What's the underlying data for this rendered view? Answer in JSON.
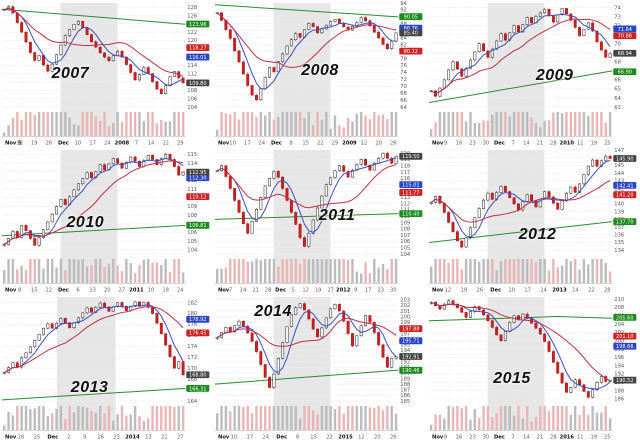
{
  "page": {
    "description": "Grid of nine seasonal stock candlestick charts, November through January, for years 2007-2015"
  },
  "colors": {
    "candle_up_fill": "#ffffff",
    "candle_up_stroke": "#222222",
    "candle_down_fill": "#cc2020",
    "candle_down_stroke": "#a01616",
    "ma_short": "#3a4fc4",
    "ma_long": "#c03048",
    "ma_200": "#2e8b2e",
    "vol_up": "#bcbcbc",
    "vol_down": "#e9b6b6",
    "band": "#d9d9d9",
    "grid": "#ececec",
    "axis_text": "#555555",
    "tag_green": "#1d8a1d",
    "tag_red": "#cc2222",
    "tag_blue": "#2a46c8",
    "tag_last": "#444444"
  },
  "chart_data": [
    {
      "type": "candlestick",
      "year": "2007",
      "year_pos": [
        0.33,
        0.5
      ],
      "ylim": [
        104,
        129
      ],
      "ystep": 2,
      "band": [
        0.32,
        0.63
      ],
      "x_labels": [
        "Nov 5",
        "12",
        "19",
        "26",
        "Dec",
        "10",
        "17",
        "24",
        "2008",
        "7",
        "14",
        "22",
        "29"
      ],
      "closes": [
        127.4,
        128.1,
        126.6,
        124.3,
        122.0,
        119.6,
        117.1,
        115.2,
        116.4,
        114.1,
        112.6,
        114.3,
        116.6,
        118.9,
        121.2,
        122.6,
        123.9,
        124.6,
        123.1,
        121.4,
        119.7,
        118.4,
        117.0,
        116.0,
        115.1,
        116.3,
        117.4,
        116.0,
        114.2,
        112.3,
        110.5,
        111.8,
        113.5,
        112.0,
        110.1,
        108.3,
        107.2,
        109.1,
        111.3,
        112.5,
        111.0,
        109.8
      ],
      "green_line": [
        [
          0,
          127.5
        ],
        [
          1,
          123.9
        ]
      ],
      "tags": [
        {
          "label": "123.96",
          "value": 123.96,
          "color": "tag_green"
        },
        {
          "label": "118.27",
          "value": 118.27,
          "color": "tag_red"
        },
        {
          "label": "116.01",
          "value": 116.01,
          "color": "tag_blue"
        },
        {
          "label": "109.80",
          "value": 109.8,
          "color": "tag_last"
        }
      ]
    },
    {
      "type": "candlestick",
      "year": "2008",
      "year_pos": [
        0.5,
        0.48
      ],
      "ylim": [
        64,
        94
      ],
      "ystep": 2,
      "band": [
        0.32,
        0.63
      ],
      "x_labels": [
        "Nov",
        "10",
        "17",
        "24",
        "Dec",
        "8",
        "15",
        "22",
        "29",
        "2009",
        "12",
        "20",
        "26"
      ],
      "closes": [
        91.2,
        89.0,
        86.3,
        83.8,
        80.2,
        77.0,
        73.5,
        70.2,
        67.4,
        66.1,
        69.3,
        72.6,
        75.4,
        74.2,
        77.1,
        79.3,
        81.6,
        83.4,
        85.2,
        84.1,
        86.3,
        88.1,
        87.2,
        85.4,
        86.5,
        87.6,
        88.7,
        89.3,
        88.2,
        87.1,
        86.2,
        87.3,
        88.4,
        89.8,
        88.9,
        87.4,
        85.6,
        83.9,
        82.1,
        80.8,
        83.0,
        85.4
      ],
      "green_line": [
        [
          0,
          93.5
        ],
        [
          1,
          90.0
        ]
      ],
      "tags": [
        {
          "label": "90.05",
          "value": 90.05,
          "color": "tag_green"
        },
        {
          "label": "86.76",
          "value": 86.76,
          "color": "tag_blue"
        },
        {
          "label": "80.12",
          "value": 80.12,
          "color": "tag_red"
        },
        {
          "label": "85.40",
          "value": 85.4,
          "color": "tag_last"
        }
      ]
    },
    {
      "type": "candlestick",
      "year": "2009",
      "year_pos": [
        0.6,
        0.52
      ],
      "ylim": [
        63,
        74.5
      ],
      "ystep": 1,
      "band": [
        0.32,
        0.63
      ],
      "x_labels": [
        "Nov",
        "9",
        "16",
        "23",
        "30",
        "Dec",
        "7",
        "14",
        "21",
        "28",
        "2010",
        "11",
        "19",
        "25"
      ],
      "closes": [
        64.8,
        64.2,
        65.1,
        66.0,
        67.1,
        68.0,
        67.2,
        66.4,
        67.3,
        68.2,
        69.1,
        70.0,
        69.2,
        68.5,
        69.4,
        70.3,
        71.1,
        70.4,
        71.2,
        72.0,
        71.3,
        72.1,
        72.9,
        72.3,
        73.0,
        73.4,
        73.8,
        73.1,
        72.4,
        73.2,
        73.9,
        73.3,
        72.6,
        71.8,
        70.9,
        71.6,
        72.3,
        71.4,
        70.2,
        69.3,
        68.5,
        68.9
      ],
      "green_line": [
        [
          0,
          63.5
        ],
        [
          1,
          67.0
        ]
      ],
      "tags": [
        {
          "label": "66.90",
          "value": 66.9,
          "color": "tag_green"
        },
        {
          "label": "70.88",
          "value": 70.88,
          "color": "tag_red"
        },
        {
          "label": "71.64",
          "value": 71.64,
          "color": "tag_blue"
        },
        {
          "label": "68.94",
          "value": 68.94,
          "color": "tag_last"
        }
      ]
    },
    {
      "type": "candlestick",
      "year": "2010",
      "year_pos": [
        0.4,
        0.52
      ],
      "ylim": [
        103.5,
        115.5
      ],
      "ystep": 1,
      "band": [
        0.32,
        0.63
      ],
      "x_labels": [
        "Nov",
        "8",
        "15",
        "22",
        "Dec",
        "6",
        "13",
        "20",
        "27",
        "2011",
        "10",
        "18",
        "24"
      ],
      "closes": [
        104.6,
        105.3,
        106.1,
        105.4,
        106.8,
        106.2,
        105.3,
        104.5,
        105.4,
        106.3,
        107.2,
        108.1,
        109.0,
        109.8,
        109.2,
        110.1,
        110.9,
        111.6,
        112.2,
        112.9,
        112.3,
        113.0,
        113.8,
        113.2,
        113.9,
        114.5,
        114.0,
        113.4,
        114.1,
        114.7,
        114.2,
        113.6,
        114.3,
        114.9,
        114.4,
        113.8,
        114.5,
        115.0,
        114.4,
        113.6,
        112.6,
        112.95
      ],
      "green_line": [
        [
          0,
          105.6
        ],
        [
          1,
          106.8
        ]
      ],
      "tags": [
        {
          "label": "106.81",
          "value": 106.81,
          "color": "tag_green"
        },
        {
          "label": "110.12",
          "value": 110.12,
          "color": "tag_red"
        },
        {
          "label": "112.30",
          "value": 112.3,
          "color": "tag_blue"
        },
        {
          "label": "112.95",
          "value": 112.95,
          "color": "tag_last"
        }
      ]
    },
    {
      "type": "candlestick",
      "year": "2011",
      "year_pos": [
        0.58,
        0.47
      ],
      "ylim": [
        104,
        120.5
      ],
      "ystep": 1,
      "band": [
        0.32,
        0.63
      ],
      "x_labels": [
        "Nov",
        "7",
        "14",
        "21",
        "28",
        "Dec",
        "5",
        "12",
        "19",
        "27",
        "2012",
        "9",
        "17",
        "23",
        "30"
      ],
      "closes": [
        117.2,
        118.0,
        116.3,
        114.4,
        112.5,
        110.6,
        108.8,
        107.3,
        109.2,
        111.1,
        113.0,
        114.8,
        116.0,
        117.1,
        116.2,
        114.4,
        112.5,
        110.6,
        108.7,
        106.6,
        105.2,
        107.3,
        109.4,
        111.3,
        113.2,
        115.0,
        116.1,
        117.2,
        118.0,
        117.1,
        116.2,
        117.3,
        118.2,
        119.0,
        118.1,
        117.3,
        118.4,
        119.2,
        120.0,
        119.2,
        118.4,
        119.5
      ],
      "green_line": [
        [
          0,
          109.5
        ],
        [
          1,
          110.4
        ]
      ],
      "tags": [
        {
          "label": "110.40",
          "value": 110.4,
          "color": "tag_green"
        },
        {
          "label": "113.77",
          "value": 113.77,
          "color": "tag_red"
        },
        {
          "label": "115.01",
          "value": 115.01,
          "color": "tag_blue"
        },
        {
          "label": "119.50",
          "value": 119.5,
          "color": "tag_last"
        }
      ]
    },
    {
      "type": "candlestick",
      "year": "2012",
      "year_pos": [
        0.52,
        0.6
      ],
      "ylim": [
        133.5,
        147
      ],
      "ystep": 1,
      "band": [
        0.32,
        0.63
      ],
      "x_labels": [
        "Nov",
        "12",
        "19",
        "26",
        "Dec",
        "10",
        "17",
        "24",
        "2013",
        "14",
        "22",
        "28"
      ],
      "closes": [
        140.2,
        141.0,
        140.1,
        138.9,
        137.6,
        136.4,
        135.2,
        134.4,
        135.6,
        136.9,
        138.2,
        139.4,
        140.5,
        141.4,
        140.6,
        141.5,
        142.3,
        141.6,
        140.8,
        140.0,
        139.2,
        140.3,
        141.2,
        140.4,
        139.6,
        140.6,
        141.6,
        140.9,
        140.1,
        139.3,
        140.4,
        141.4,
        142.2,
        141.5,
        142.6,
        143.8,
        144.9,
        145.7,
        144.9,
        145.6,
        146.2,
        145.9
      ],
      "green_line": [
        [
          0,
          135.0
        ],
        [
          1,
          137.7
        ]
      ],
      "tags": [
        {
          "label": "137.70",
          "value": 137.7,
          "color": "tag_green"
        },
        {
          "label": "141.20",
          "value": 141.2,
          "color": "tag_red"
        },
        {
          "label": "142.41",
          "value": 142.41,
          "color": "tag_blue"
        },
        {
          "label": "145.90",
          "value": 145.9,
          "color": "tag_last"
        }
      ]
    },
    {
      "type": "candlestick",
      "year": "2013",
      "year_pos": [
        0.42,
        0.64
      ],
      "ylim": [
        164,
        183
      ],
      "ystep": 2,
      "band": [
        0.3,
        0.62
      ],
      "x_labels": [
        "Nov",
        "18",
        "25",
        "Dec",
        "2",
        "9",
        "16",
        "23",
        "2014",
        "13",
        "21",
        "27"
      ],
      "closes": [
        169.2,
        170.1,
        171.0,
        170.2,
        171.9,
        172.8,
        173.9,
        175.1,
        176.2,
        177.3,
        178.1,
        177.3,
        178.2,
        179.1,
        178.3,
        177.4,
        178.3,
        179.2,
        180.1,
        181.0,
        180.2,
        181.1,
        181.9,
        181.2,
        180.4,
        181.2,
        182.0,
        181.3,
        180.5,
        181.3,
        182.1,
        181.4,
        182.0,
        181.1,
        180.0,
        178.2,
        176.3,
        174.2,
        172.1,
        170.0,
        171.2,
        168.8
      ],
      "green_line": [
        [
          0,
          164.2
        ],
        [
          1,
          166.3
        ]
      ],
      "tags": [
        {
          "label": "166.31",
          "value": 166.31,
          "color": "tag_green"
        },
        {
          "label": "176.45",
          "value": 176.45,
          "color": "tag_red"
        },
        {
          "label": "178.92",
          "value": 178.92,
          "color": "tag_blue"
        },
        {
          "label": "168.80",
          "value": 168.8,
          "color": "tag_last"
        }
      ]
    },
    {
      "type": "candlestick",
      "year": "2014",
      "year_pos": [
        0.28,
        0.12
      ],
      "ylim": [
        185,
        203.5
      ],
      "ystep": 1,
      "band": [
        0.32,
        0.63
      ],
      "x_labels": [
        "Nov",
        "10",
        "17",
        "24",
        "Dec",
        "8",
        "15",
        "22",
        "2015",
        "12",
        "20",
        "26"
      ],
      "closes": [
        196.3,
        197.2,
        198.1,
        197.3,
        198.4,
        199.2,
        198.3,
        197.1,
        195.6,
        193.8,
        191.5,
        189.2,
        187.4,
        189.8,
        192.6,
        195.4,
        198.2,
        200.4,
        201.6,
        202.3,
        201.2,
        199.6,
        197.8,
        196.4,
        198.0,
        199.8,
        201.4,
        202.2,
        201.0,
        199.2,
        197.0,
        194.8,
        196.6,
        198.4,
        200.2,
        199.0,
        197.2,
        195.0,
        192.8,
        191.0,
        192.6,
        192.91
      ],
      "green_line": [
        [
          0,
          188.0
        ],
        [
          1,
          190.5
        ]
      ],
      "tags": [
        {
          "label": "190.46",
          "value": 190.46,
          "color": "tag_green"
        },
        {
          "label": "197.88",
          "value": 197.88,
          "color": "tag_red"
        },
        {
          "label": "195.71",
          "value": 195.71,
          "color": "tag_blue"
        },
        {
          "label": "192.91",
          "value": 192.91,
          "color": "tag_last"
        }
      ]
    },
    {
      "type": "candlestick",
      "year": "2015",
      "year_pos": [
        0.4,
        0.58
      ],
      "ylim": [
        185.5,
        210.5
      ],
      "ystep": 2,
      "band": [
        0.32,
        0.63
      ],
      "x_labels": [
        "Nov",
        "9",
        "16",
        "23",
        "30",
        "Dec",
        "7",
        "14",
        "21",
        "28",
        "2016",
        "11",
        "19",
        "25"
      ],
      "closes": [
        209.2,
        208.4,
        207.6,
        208.8,
        209.6,
        208.8,
        207.9,
        206.8,
        205.6,
        207.0,
        208.2,
        207.4,
        206.2,
        204.8,
        203.2,
        201.4,
        200.0,
        202.2,
        204.4,
        206.0,
        205.0,
        206.4,
        205.4,
        204.2,
        203.0,
        201.6,
        199.8,
        197.4,
        194.8,
        192.2,
        189.8,
        187.6,
        188.8,
        190.6,
        189.4,
        187.8,
        186.4,
        188.2,
        190.0,
        191.4,
        190.2,
        190.5
      ],
      "green_line": [
        [
          0,
          204.8
        ],
        [
          0.7,
          205.8
        ],
        [
          1,
          205.4
        ]
      ],
      "tags": [
        {
          "label": "205.60",
          "value": 205.6,
          "color": "tag_green"
        },
        {
          "label": "201.10",
          "value": 201.1,
          "color": "tag_red"
        },
        {
          "label": "198.66",
          "value": 198.66,
          "color": "tag_blue"
        },
        {
          "label": "190.52",
          "value": 190.52,
          "color": "tag_last"
        }
      ]
    }
  ]
}
